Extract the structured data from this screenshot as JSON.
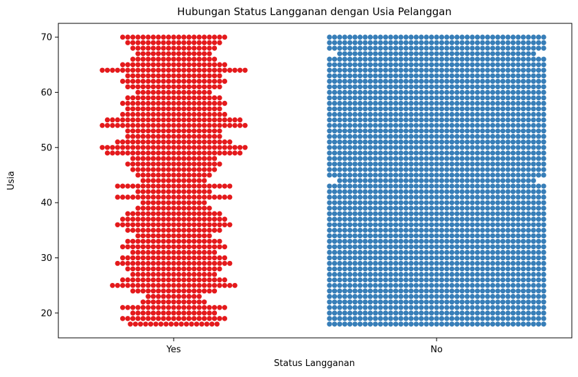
{
  "chart_data": {
    "type": "scatter",
    "subtype": "swarm",
    "title": "Hubungan Status Langganan dengan Usia Pelanggan",
    "xlabel": "Status Langganan",
    "ylabel": "Usia",
    "categories": [
      "Yes",
      "No"
    ],
    "ylim": [
      15.5,
      72.5
    ],
    "yticks": [
      20,
      30,
      40,
      50,
      60,
      70
    ],
    "grid": false,
    "legend": "none",
    "colors": {
      "Yes": "#e41a1c",
      "No": "#377eb8"
    },
    "series": [
      {
        "category": "Yes",
        "counts_by_age": {
          "18": 18,
          "19": 21,
          "20": 17,
          "21": 21,
          "22": 13,
          "23": 11,
          "24": 17,
          "25": 25,
          "26": 21,
          "27": 17,
          "28": 19,
          "29": 23,
          "30": 21,
          "31": 17,
          "32": 21,
          "33": 19,
          "34": 15,
          "35": 19,
          "36": 23,
          "37": 21,
          "38": 19,
          "39": 15,
          "40": 13,
          "41": 23,
          "42": 15,
          "43": 23,
          "44": 13,
          "45": 15,
          "46": 17,
          "47": 19,
          "48": 17,
          "49": 27,
          "50": 29,
          "51": 23,
          "52": 19,
          "53": 19,
          "54": 29,
          "55": 27,
          "56": 21,
          "57": 19,
          "58": 21,
          "59": 19,
          "60": 15,
          "61": 19,
          "62": 21,
          "63": 19,
          "64": 29,
          "65": 21,
          "66": 17,
          "67": 15,
          "68": 17,
          "69": 19,
          "70": 21
        }
      },
      {
        "category": "No",
        "counts_by_age": {
          "18": 43,
          "19": 43,
          "20": 43,
          "21": 43,
          "22": 43,
          "23": 43,
          "24": 43,
          "25": 43,
          "26": 43,
          "27": 43,
          "28": 43,
          "29": 43,
          "30": 43,
          "31": 43,
          "32": 43,
          "33": 43,
          "34": 43,
          "35": 43,
          "36": 43,
          "37": 43,
          "38": 43,
          "39": 43,
          "40": 43,
          "41": 43,
          "42": 43,
          "43": 43,
          "44": 39,
          "45": 43,
          "46": 43,
          "47": 43,
          "48": 43,
          "49": 43,
          "50": 43,
          "51": 43,
          "52": 43,
          "53": 43,
          "54": 43,
          "55": 43,
          "56": 43,
          "57": 43,
          "58": 43,
          "59": 43,
          "60": 43,
          "61": 43,
          "62": 43,
          "63": 43,
          "64": 43,
          "65": 43,
          "66": 43,
          "67": 39,
          "68": 43,
          "69": 43,
          "70": 43
        }
      }
    ]
  }
}
